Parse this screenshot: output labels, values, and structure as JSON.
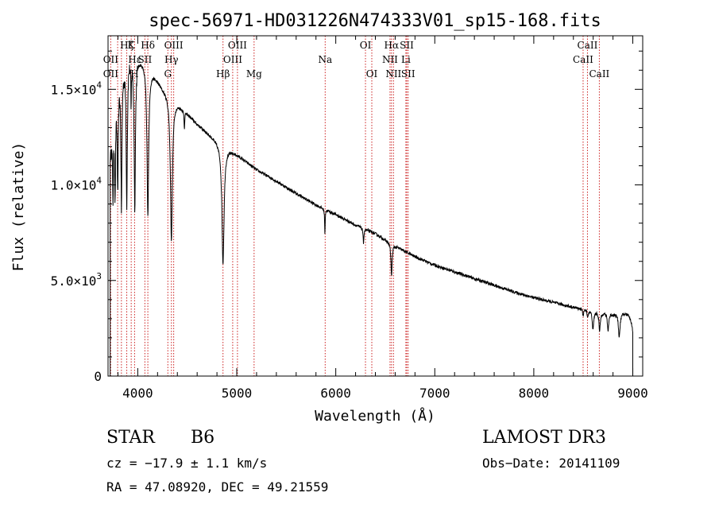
{
  "chart_data": {
    "type": "line",
    "title": "spec-56971-HD031226N474333V01_sp15-168.fits",
    "xlabel": "Wavelength (Å)",
    "ylabel": "Flux (relative)",
    "xlim": [
      3700,
      9100
    ],
    "ylim": [
      0,
      17800
    ],
    "x_ticks": [
      4000,
      5000,
      6000,
      7000,
      8000,
      9000
    ],
    "x_tick_labels": [
      "4000",
      "5000",
      "6000",
      "7000",
      "8000",
      "9000"
    ],
    "y_ticks": [
      0,
      5000,
      10000,
      15000
    ],
    "y_tick_labels": [
      {
        "mant": "0",
        "exp": ""
      },
      {
        "mant": "5.0×10",
        "exp": "3"
      },
      {
        "mant": "1.0×10",
        "exp": "4"
      },
      {
        "mant": "1.5×10",
        "exp": "4"
      }
    ],
    "continuum": [
      [
        3720,
        11500
      ],
      [
        3800,
        15500
      ],
      [
        3900,
        16800
      ],
      [
        3970,
        16800
      ],
      [
        4050,
        16500
      ],
      [
        4150,
        15900
      ],
      [
        4250,
        15100
      ],
      [
        4400,
        14300
      ],
      [
        4600,
        13200
      ],
      [
        4800,
        12300
      ],
      [
        5000,
        11600
      ],
      [
        5200,
        10800
      ],
      [
        5400,
        10200
      ],
      [
        5600,
        9550
      ],
      [
        5800,
        8950
      ],
      [
        6000,
        8450
      ],
      [
        6200,
        7900
      ],
      [
        6400,
        7450
      ],
      [
        6600,
        6800
      ],
      [
        6800,
        6250
      ],
      [
        7000,
        5800
      ],
      [
        7200,
        5450
      ],
      [
        7400,
        5100
      ],
      [
        7600,
        4750
      ],
      [
        7800,
        4400
      ],
      [
        8000,
        4100
      ],
      [
        8200,
        3850
      ],
      [
        8400,
        3600
      ],
      [
        8600,
        3400
      ],
      [
        8800,
        3250
      ],
      [
        8900,
        3300
      ],
      [
        8960,
        3200
      ],
      [
        8990,
        2700
      ],
      [
        9000,
        2300
      ]
    ],
    "absorption_lines": [
      {
        "center": 3750,
        "depth": 3500,
        "width": 5
      },
      {
        "center": 3771,
        "depth": 4500,
        "width": 5
      },
      {
        "center": 3798,
        "depth": 5500,
        "width": 6
      },
      {
        "center": 3835,
        "depth": 7000,
        "width": 6
      },
      {
        "center": 3889,
        "depth": 7500,
        "width": 7
      },
      {
        "center": 3933,
        "depth": 2500,
        "width": 3
      },
      {
        "center": 3970,
        "depth": 7800,
        "width": 8
      },
      {
        "center": 4102,
        "depth": 7800,
        "width": 10
      },
      {
        "center": 4340,
        "depth": 7500,
        "width": 12
      },
      {
        "center": 4471,
        "depth": 900,
        "width": 4
      },
      {
        "center": 4861,
        "depth": 6200,
        "width": 13
      },
      {
        "center": 5890,
        "depth": 1400,
        "width": 3
      },
      {
        "center": 6280,
        "depth": 900,
        "width": 4
      },
      {
        "center": 6563,
        "depth": 1700,
        "width": 7
      },
      {
        "center": 8498,
        "depth": 300,
        "width": 6
      },
      {
        "center": 8545,
        "depth": 350,
        "width": 6
      },
      {
        "center": 8598,
        "depth": 1000,
        "width": 8
      },
      {
        "center": 8665,
        "depth": 1000,
        "width": 8
      },
      {
        "center": 8750,
        "depth": 900,
        "width": 8
      },
      {
        "center": 8863,
        "depth": 1200,
        "width": 10
      }
    ],
    "line_markers": [
      {
        "label": "Hζ",
        "wavelength": 3889,
        "row": 1
      },
      {
        "label": "K",
        "wavelength": 3934,
        "row": 1
      },
      {
        "label": "Hδ",
        "wavelength": 4102,
        "row": 1
      },
      {
        "label": "OIII",
        "wavelength": 4363,
        "row": 1
      },
      {
        "label": "OIII",
        "wavelength": 5007,
        "row": 1
      },
      {
        "label": "OI",
        "wavelength": 6300,
        "row": 1
      },
      {
        "label": "Hα",
        "wavelength": 6563,
        "row": 1
      },
      {
        "label": "SII",
        "wavelength": 6717,
        "row": 1
      },
      {
        "label": "CaII",
        "wavelength": 8542,
        "row": 1
      },
      {
        "label": "OII",
        "wavelength": 3727,
        "row": 2
      },
      {
        "label": "Hε",
        "wavelength": 3970,
        "row": 2
      },
      {
        "label": "SII",
        "wavelength": 4072,
        "row": 2
      },
      {
        "label": "Hγ",
        "wavelength": 4340,
        "row": 2
      },
      {
        "label": "OIII",
        "wavelength": 4959,
        "row": 2
      },
      {
        "label": "Na",
        "wavelength": 5893,
        "row": 2
      },
      {
        "label": "NII",
        "wavelength": 6548,
        "row": 2
      },
      {
        "label": "Li",
        "wavelength": 6708,
        "row": 2
      },
      {
        "label": "CaII",
        "wavelength": 8498,
        "row": 2
      },
      {
        "label": "OII",
        "wavelength": 3727,
        "row": 3
      },
      {
        "label": "H",
        "wavelength": 3968,
        "row": 3
      },
      {
        "label": "G",
        "wavelength": 4304,
        "row": 3
      },
      {
        "label": "Hβ",
        "wavelength": 4861,
        "row": 3
      },
      {
        "label": "Mg",
        "wavelength": 5175,
        "row": 3
      },
      {
        "label": "OI",
        "wavelength": 6364,
        "row": 3
      },
      {
        "label": "NII",
        "wavelength": 6583,
        "row": 3
      },
      {
        "label": "SII",
        "wavelength": 6731,
        "row": 3
      },
      {
        "label": "CaII",
        "wavelength": 8662,
        "row": 3
      }
    ],
    "marker_lines": [
      3727,
      3797,
      3835,
      3889,
      3934,
      3968,
      4072,
      4102,
      4304,
      4340,
      4363,
      4861,
      4959,
      5007,
      5175,
      5893,
      6300,
      6364,
      6548,
      6563,
      6583,
      6708,
      6717,
      6731,
      8498,
      8542,
      8662
    ],
    "line_color": "#000000",
    "marker_color": "#cc2222"
  },
  "info": {
    "class_label": "STAR",
    "subclass": "B6",
    "survey": "LAMOST DR3",
    "redshift": "cz = −17.9 ± 1.1 km/s",
    "obs_date": "Obs−Date: 20141109",
    "coords": "RA =  47.08920, DEC =  49.21559"
  }
}
